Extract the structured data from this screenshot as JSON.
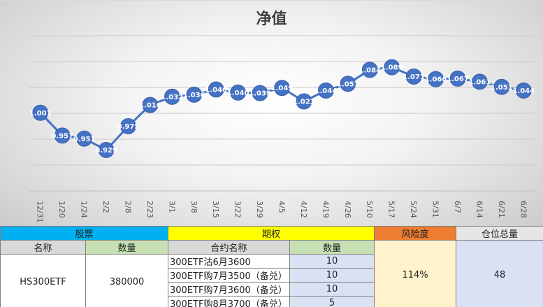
{
  "chart_data": {
    "type": "line",
    "title": "净值",
    "categories": [
      "12/31",
      "1/20",
      "1/24",
      "2/2",
      "2/8",
      "2/23",
      "3/1",
      "3/8",
      "3/15",
      "3/22",
      "3/29",
      "4/5",
      "4/12",
      "4/19",
      "4/26",
      "5/10",
      "5/17",
      "5/24",
      "5/31",
      "6/7",
      "6/14",
      "6/21",
      "6/28"
    ],
    "values": [
      1.001,
      0.957,
      0.951,
      0.929,
      0.975,
      1.016,
      1.032,
      1.036,
      1.046,
      1.04,
      1.039,
      1.049,
      1.023,
      1.044,
      1.057,
      1.084,
      1.089,
      1.071,
      1.066,
      1.067,
      1.061,
      1.051,
      1.044
    ],
    "value_labels": [
      "1.001",
      "0.957",
      "0.951",
      "0.929",
      "0.975",
      "1.016",
      "1.032",
      "1.036",
      "1.046",
      "1.040",
      "1.039",
      "1.049",
      "1.023",
      "1.044",
      "1.057",
      "1.084",
      "1.089",
      "1.071",
      "1.066",
      "1.067",
      "1.061",
      "1.051",
      "1.044"
    ],
    "ylim": [
      0.85,
      1.15
    ],
    "grid": true,
    "line_color": "#4472c4",
    "marker_color": "#4472c4"
  },
  "table": {
    "headers": {
      "stock": "股票",
      "option": "期权",
      "risk": "风险度",
      "position": "仓位总量"
    },
    "subheaders": {
      "stock_name": "名称",
      "stock_qty": "数量",
      "option_name": "合约名称",
      "option_qty": "数量"
    },
    "stock": {
      "name": "HS300ETF",
      "qty": "380000"
    },
    "options": [
      {
        "name": "300ETF沽6月3600",
        "qty": "10"
      },
      {
        "name": "300ETF购7月3500（备兑）",
        "qty": "10"
      },
      {
        "name": "300ETF购7月3600（备兑）",
        "qty": "10"
      },
      {
        "name": "300ETF购8月3700（备兑）",
        "qty": "5"
      }
    ],
    "risk": "114%",
    "position": "48"
  }
}
